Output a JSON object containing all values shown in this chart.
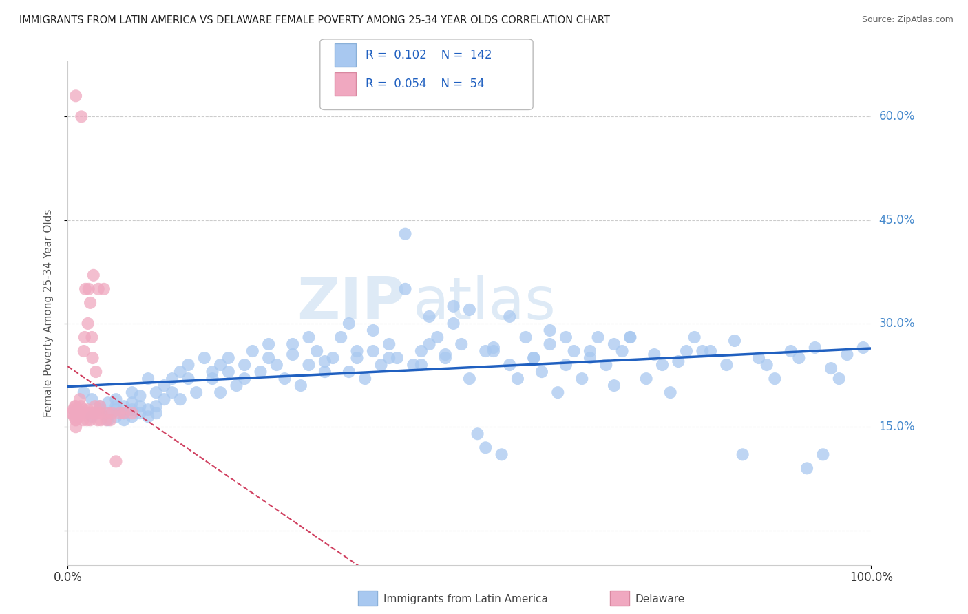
{
  "title": "IMMIGRANTS FROM LATIN AMERICA VS DELAWARE FEMALE POVERTY AMONG 25-34 YEAR OLDS CORRELATION CHART",
  "source": "Source: ZipAtlas.com",
  "ylabel": "Female Poverty Among 25-34 Year Olds",
  "xlim": [
    0,
    1.0
  ],
  "ylim": [
    -0.05,
    0.68
  ],
  "yticks": [
    0.0,
    0.15,
    0.3,
    0.45,
    0.6
  ],
  "ytick_labels": [
    "",
    "15.0%",
    "30.0%",
    "45.0%",
    "60.0%"
  ],
  "xtick_labels": [
    "0.0%",
    "100.0%"
  ],
  "grid_color": "#cccccc",
  "blue_color": "#a8c8f0",
  "pink_color": "#f0a8c0",
  "blue_line_color": "#2060c0",
  "pink_line_color": "#d04060",
  "legend_R1": "0.102",
  "legend_N1": "142",
  "legend_R2": "0.054",
  "legend_N2": "54",
  "legend_text_color": "#2060c0",
  "watermark_text": "ZIP",
  "watermark_text2": "atlas",
  "blue_scatter_x": [
    0.02,
    0.03,
    0.03,
    0.04,
    0.04,
    0.05,
    0.05,
    0.05,
    0.06,
    0.06,
    0.06,
    0.06,
    0.07,
    0.07,
    0.07,
    0.08,
    0.08,
    0.08,
    0.08,
    0.09,
    0.09,
    0.09,
    0.1,
    0.1,
    0.1,
    0.11,
    0.11,
    0.11,
    0.12,
    0.12,
    0.13,
    0.13,
    0.14,
    0.14,
    0.15,
    0.15,
    0.16,
    0.17,
    0.18,
    0.18,
    0.19,
    0.19,
    0.2,
    0.2,
    0.21,
    0.22,
    0.22,
    0.23,
    0.24,
    0.25,
    0.26,
    0.27,
    0.28,
    0.29,
    0.3,
    0.31,
    0.32,
    0.33,
    0.34,
    0.35,
    0.36,
    0.37,
    0.38,
    0.39,
    0.4,
    0.41,
    0.42,
    0.43,
    0.44,
    0.45,
    0.46,
    0.47,
    0.48,
    0.49,
    0.5,
    0.51,
    0.52,
    0.53,
    0.54,
    0.55,
    0.56,
    0.57,
    0.58,
    0.59,
    0.6,
    0.61,
    0.62,
    0.63,
    0.64,
    0.65,
    0.66,
    0.67,
    0.68,
    0.69,
    0.7,
    0.72,
    0.74,
    0.75,
    0.77,
    0.78,
    0.8,
    0.82,
    0.84,
    0.86,
    0.88,
    0.9,
    0.92,
    0.94,
    0.96,
    0.5,
    0.42,
    0.55,
    0.6,
    0.65,
    0.7,
    0.48,
    0.35,
    0.3,
    0.38,
    0.45,
    0.52,
    0.58,
    0.62,
    0.68,
    0.73,
    0.76,
    0.79,
    0.83,
    0.87,
    0.91,
    0.93,
    0.95,
    0.97,
    0.99,
    0.25,
    0.28,
    0.32,
    0.36,
    0.4,
    0.44,
    0.47,
    0.53
  ],
  "blue_scatter_y": [
    0.2,
    0.19,
    0.165,
    0.18,
    0.175,
    0.17,
    0.185,
    0.16,
    0.175,
    0.18,
    0.165,
    0.19,
    0.18,
    0.17,
    0.16,
    0.175,
    0.185,
    0.165,
    0.2,
    0.17,
    0.18,
    0.195,
    0.165,
    0.175,
    0.22,
    0.2,
    0.18,
    0.17,
    0.21,
    0.19,
    0.22,
    0.2,
    0.23,
    0.19,
    0.24,
    0.22,
    0.2,
    0.25,
    0.23,
    0.22,
    0.24,
    0.2,
    0.25,
    0.23,
    0.21,
    0.24,
    0.22,
    0.26,
    0.23,
    0.25,
    0.24,
    0.22,
    0.27,
    0.21,
    0.24,
    0.26,
    0.23,
    0.25,
    0.28,
    0.23,
    0.25,
    0.22,
    0.26,
    0.24,
    0.27,
    0.25,
    0.43,
    0.24,
    0.26,
    0.31,
    0.28,
    0.25,
    0.3,
    0.27,
    0.22,
    0.14,
    0.12,
    0.26,
    0.11,
    0.24,
    0.22,
    0.28,
    0.25,
    0.23,
    0.27,
    0.2,
    0.24,
    0.26,
    0.22,
    0.25,
    0.28,
    0.24,
    0.21,
    0.26,
    0.28,
    0.22,
    0.24,
    0.2,
    0.26,
    0.28,
    0.26,
    0.24,
    0.11,
    0.25,
    0.22,
    0.26,
    0.09,
    0.11,
    0.22,
    0.32,
    0.35,
    0.31,
    0.29,
    0.26,
    0.28,
    0.325,
    0.3,
    0.28,
    0.29,
    0.27,
    0.26,
    0.25,
    0.28,
    0.27,
    0.255,
    0.245,
    0.26,
    0.275,
    0.24,
    0.25,
    0.265,
    0.235,
    0.255,
    0.265,
    0.27,
    0.255,
    0.245,
    0.26,
    0.25,
    0.24,
    0.255,
    0.265
  ],
  "pink_scatter_x": [
    0.005,
    0.007,
    0.008,
    0.009,
    0.01,
    0.01,
    0.01,
    0.01,
    0.01,
    0.01,
    0.01,
    0.012,
    0.013,
    0.014,
    0.015,
    0.015,
    0.016,
    0.017,
    0.018,
    0.019,
    0.02,
    0.02,
    0.021,
    0.022,
    0.023,
    0.024,
    0.025,
    0.025,
    0.026,
    0.027,
    0.028,
    0.028,
    0.03,
    0.031,
    0.032,
    0.033,
    0.034,
    0.035,
    0.036,
    0.037,
    0.038,
    0.039,
    0.04,
    0.041,
    0.042,
    0.045,
    0.048,
    0.05,
    0.053,
    0.055,
    0.06,
    0.065,
    0.07,
    0.08
  ],
  "pink_scatter_y": [
    0.17,
    0.175,
    0.165,
    0.18,
    0.15,
    0.17,
    0.16,
    0.18,
    0.17,
    0.16,
    0.63,
    0.175,
    0.17,
    0.165,
    0.19,
    0.17,
    0.18,
    0.6,
    0.17,
    0.16,
    0.175,
    0.26,
    0.28,
    0.35,
    0.17,
    0.16,
    0.3,
    0.175,
    0.35,
    0.17,
    0.33,
    0.16,
    0.28,
    0.25,
    0.37,
    0.17,
    0.18,
    0.23,
    0.17,
    0.16,
    0.35,
    0.17,
    0.18,
    0.16,
    0.17,
    0.35,
    0.16,
    0.17,
    0.16,
    0.17,
    0.1,
    0.17,
    0.17,
    0.17
  ]
}
